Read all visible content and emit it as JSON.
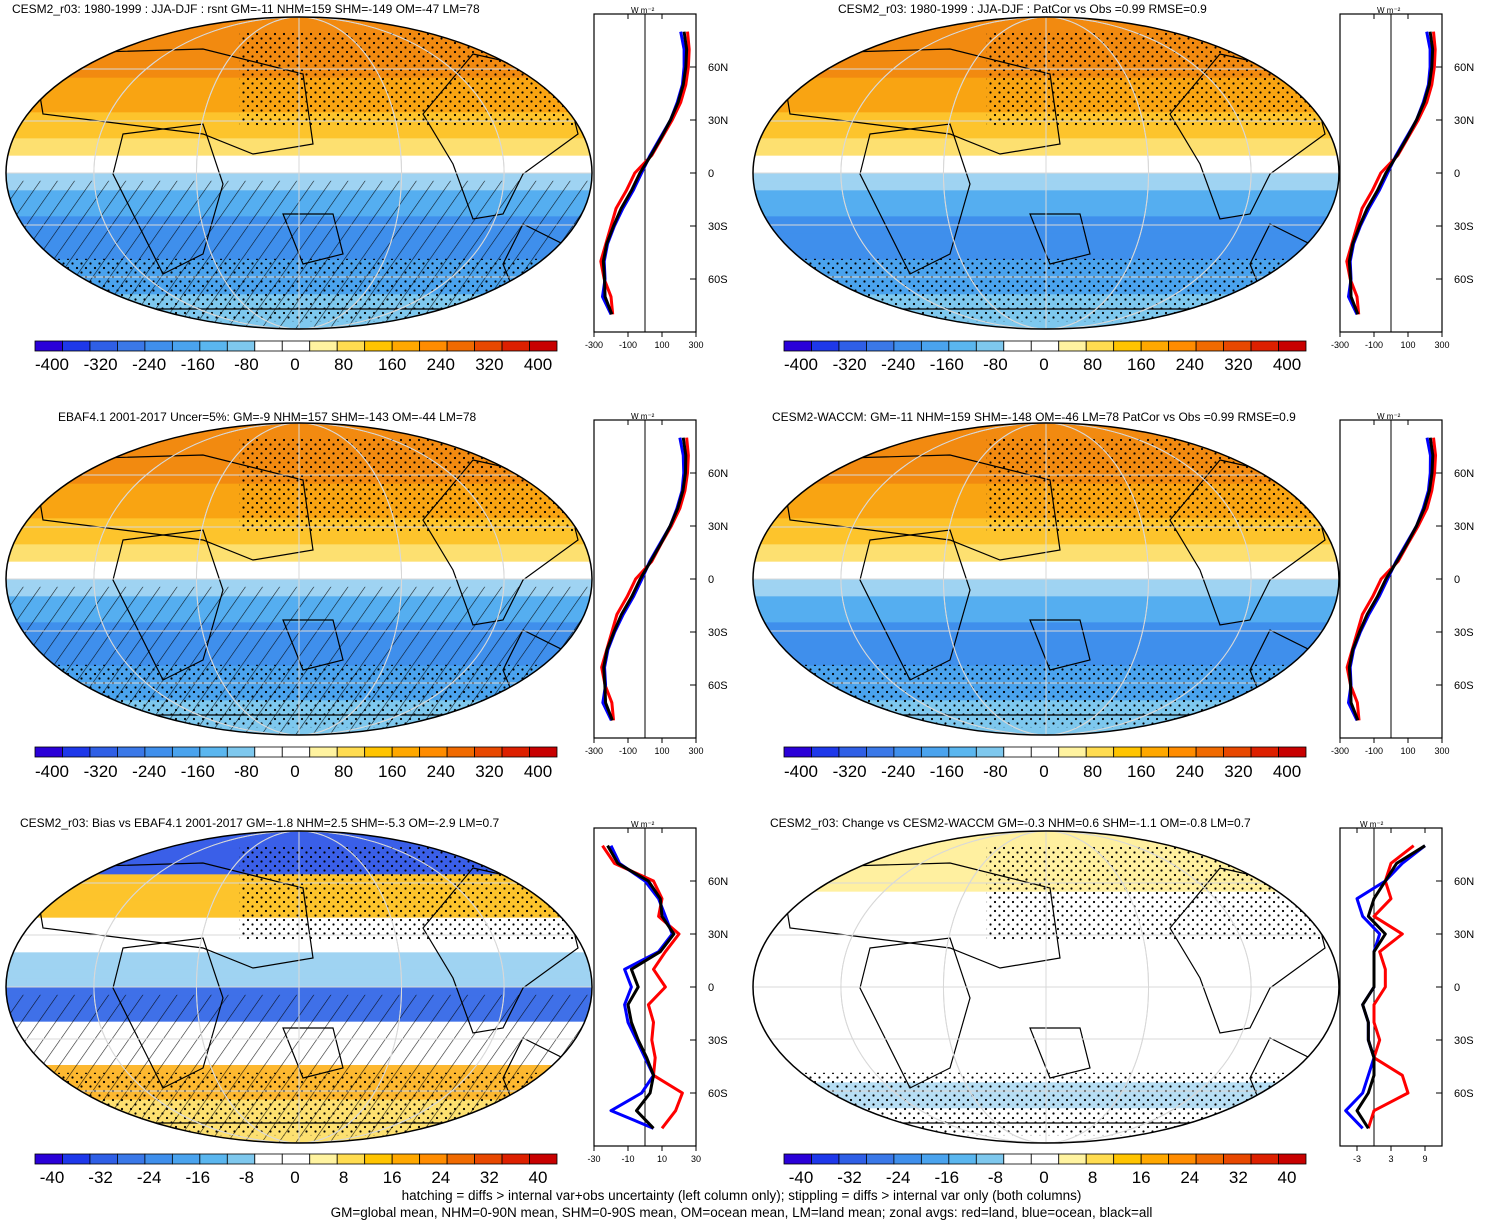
{
  "figure": {
    "footer_line1": "hatching = diffs > internal var+obs uncertainty (left column only); stippling = diffs > internal var only (both columns)",
    "footer_line2": "GM=global mean, NHM=0-90N mean, SHM=0-90S mean, OM=ocean mean, LM=land mean; zonal avgs: red=land, blue=ocean, black=all",
    "zonal_unit_label": "W m⁻²",
    "lat_ticks": [
      "60N",
      "30N",
      "0",
      "30S",
      "60S"
    ]
  },
  "colors": {
    "land_line": "#ff0000",
    "ocean_line": "#0000ff",
    "all_line": "#000000",
    "colorbar": [
      "#2a00d8",
      "#1e38ea",
      "#2f5fe6",
      "#3a78e8",
      "#3f8fec",
      "#4aa3ee",
      "#5ab6ef",
      "#7ec8ee",
      "#ffffff",
      "#ffffff",
      "#fff3a0",
      "#ffdc50",
      "#ffc400",
      "#ffa800",
      "#ff8c00",
      "#f06a00",
      "#e84800",
      "#dd2000",
      "#c80000"
    ]
  },
  "chart_data": [
    {
      "type": "heatmap",
      "title": "CESM2_r03: 1980-1999 : JJA-DJF : rsnt GM=-11 NHM=159 SHM=-149 OM=-47 LM=78",
      "colorbar_ticks": [
        "-400",
        "-320",
        "-240",
        "-160",
        "-80",
        "0",
        "80",
        "160",
        "240",
        "320",
        "400"
      ],
      "zonal_xticks": [
        "-300",
        "-100",
        "100",
        "300"
      ],
      "zonal_xlim": [
        -300,
        300
      ],
      "hatching": true,
      "stippling": true,
      "lat": [
        80,
        70,
        60,
        50,
        40,
        30,
        20,
        10,
        0,
        -10,
        -20,
        -30,
        -40,
        -50,
        -60,
        -70,
        -80
      ],
      "series": [
        {
          "name": "land",
          "values": [
            250,
            260,
            255,
            240,
            210,
            160,
            100,
            40,
            -60,
            -110,
            -170,
            -200,
            -230,
            -260,
            -240,
            -200,
            -190
          ]
        },
        {
          "name": "ocean",
          "values": [
            210,
            230,
            230,
            220,
            190,
            150,
            90,
            30,
            -20,
            -70,
            -130,
            -180,
            -220,
            -240,
            -235,
            -250,
            -200
          ]
        },
        {
          "name": "all",
          "values": [
            230,
            245,
            240,
            225,
            195,
            150,
            95,
            35,
            -30,
            -80,
            -140,
            -185,
            -225,
            -245,
            -238,
            -235,
            -195
          ]
        }
      ]
    },
    {
      "type": "heatmap",
      "title": "CESM2_r03: 1980-1999 : JJA-DJF : PatCor vs Obs =0.99 RMSE=0.9",
      "colorbar_ticks": [
        "-400",
        "-320",
        "-240",
        "-160",
        "-80",
        "0",
        "80",
        "160",
        "240",
        "320",
        "400"
      ],
      "zonal_xticks": [
        "-300",
        "-100",
        "100",
        "300"
      ],
      "zonal_xlim": [
        -300,
        300
      ],
      "hatching": false,
      "stippling": true,
      "lat": [
        80,
        70,
        60,
        50,
        40,
        30,
        20,
        10,
        0,
        -10,
        -20,
        -30,
        -40,
        -50,
        -60,
        -70,
        -80
      ],
      "series": [
        {
          "name": "land",
          "values": [
            250,
            260,
            255,
            240,
            210,
            160,
            100,
            40,
            -60,
            -110,
            -170,
            -200,
            -230,
            -260,
            -240,
            -200,
            -190
          ]
        },
        {
          "name": "ocean",
          "values": [
            210,
            230,
            230,
            220,
            190,
            150,
            90,
            30,
            -20,
            -70,
            -130,
            -180,
            -220,
            -240,
            -235,
            -250,
            -200
          ]
        },
        {
          "name": "all",
          "values": [
            230,
            245,
            240,
            225,
            195,
            150,
            95,
            35,
            -30,
            -80,
            -140,
            -185,
            -225,
            -245,
            -238,
            -235,
            -195
          ]
        }
      ]
    },
    {
      "type": "heatmap",
      "title": "EBAF4.1 2001-2017 Uncer=5%: GM=-9 NHM=157 SHM=-143 OM=-44 LM=78",
      "colorbar_ticks": [
        "-400",
        "-320",
        "-240",
        "-160",
        "-80",
        "0",
        "80",
        "160",
        "240",
        "320",
        "400"
      ],
      "zonal_xticks": [
        "-300",
        "-100",
        "100",
        "300"
      ],
      "zonal_xlim": [
        -300,
        300
      ],
      "hatching": true,
      "stippling": true,
      "lat": [
        80,
        70,
        60,
        50,
        40,
        30,
        20,
        10,
        0,
        -10,
        -20,
        -30,
        -40,
        -50,
        -60,
        -70,
        -80
      ],
      "series": [
        {
          "name": "land",
          "values": [
            245,
            255,
            250,
            235,
            205,
            155,
            95,
            40,
            -55,
            -105,
            -165,
            -195,
            -225,
            -255,
            -235,
            -195,
            -185
          ]
        },
        {
          "name": "ocean",
          "values": [
            205,
            225,
            228,
            218,
            188,
            148,
            88,
            28,
            -18,
            -68,
            -128,
            -178,
            -218,
            -238,
            -232,
            -248,
            -198
          ]
        },
        {
          "name": "all",
          "values": [
            225,
            240,
            238,
            223,
            193,
            148,
            93,
            33,
            -28,
            -78,
            -138,
            -183,
            -223,
            -243,
            -236,
            -232,
            -192
          ]
        }
      ]
    },
    {
      "type": "heatmap",
      "title": "CESM2-WACCM: GM=-11 NHM=159 SHM=-148 OM=-46 LM=78 PatCor vs Obs =0.99 RMSE=0.9",
      "colorbar_ticks": [
        "-400",
        "-320",
        "-240",
        "-160",
        "-80",
        "0",
        "80",
        "160",
        "240",
        "320",
        "400"
      ],
      "zonal_xticks": [
        "-300",
        "-100",
        "100",
        "300"
      ],
      "zonal_xlim": [
        -300,
        300
      ],
      "hatching": false,
      "stippling": true,
      "lat": [
        80,
        70,
        60,
        50,
        40,
        30,
        20,
        10,
        0,
        -10,
        -20,
        -30,
        -40,
        -50,
        -60,
        -70,
        -80
      ],
      "series": [
        {
          "name": "land",
          "values": [
            250,
            262,
            256,
            240,
            212,
            160,
            100,
            42,
            -58,
            -108,
            -168,
            -198,
            -228,
            -258,
            -238,
            -198,
            -188
          ]
        },
        {
          "name": "ocean",
          "values": [
            212,
            232,
            231,
            220,
            190,
            150,
            90,
            30,
            -20,
            -70,
            -130,
            -180,
            -220,
            -240,
            -235,
            -250,
            -200
          ]
        },
        {
          "name": "all",
          "values": [
            231,
            246,
            241,
            226,
            196,
            150,
            95,
            35,
            -30,
            -80,
            -140,
            -185,
            -225,
            -245,
            -238,
            -235,
            -195
          ]
        }
      ]
    },
    {
      "type": "heatmap",
      "title": "CESM2_r03: Bias vs EBAF4.1 2001-2017 GM=-1.8 NHM=2.5 SHM=-5.3 OM=-2.9 LM=0.7",
      "colorbar_ticks": [
        "-40",
        "-32",
        "-24",
        "-16",
        "-8",
        "0",
        "8",
        "16",
        "24",
        "32",
        "40"
      ],
      "zonal_xticks": [
        "-30",
        "-10",
        "10",
        "30"
      ],
      "zonal_xlim": [
        -30,
        30
      ],
      "hatching": true,
      "stippling": true,
      "lat": [
        80,
        70,
        60,
        50,
        40,
        30,
        20,
        10,
        0,
        -10,
        -20,
        -30,
        -40,
        -50,
        -60,
        -70,
        -80
      ],
      "series": [
        {
          "name": "land",
          "values": [
            -25,
            -18,
            5,
            10,
            8,
            20,
            12,
            5,
            12,
            2,
            5,
            4,
            6,
            5,
            22,
            18,
            10
          ]
        },
        {
          "name": "ocean",
          "values": [
            -20,
            -15,
            0,
            8,
            12,
            16,
            8,
            -12,
            -8,
            -12,
            -10,
            -5,
            0,
            5,
            -2,
            -20,
            5
          ]
        },
        {
          "name": "all",
          "values": [
            -22,
            -16,
            2,
            9,
            10,
            17,
            9,
            -8,
            -4,
            -10,
            -8,
            -4,
            1,
            5,
            3,
            -5,
            5
          ]
        }
      ]
    },
    {
      "type": "heatmap",
      "title": "CESM2_r03: Change vs CESM2-WACCM GM=-0.3 NHM=0.6 SHM=-1.1 OM=-0.8 LM=0.7",
      "colorbar_ticks": [
        "-40",
        "-32",
        "-24",
        "-16",
        "-8",
        "0",
        "8",
        "16",
        "24",
        "32",
        "40"
      ],
      "zonal_xticks": [
        "-3",
        "3",
        "9"
      ],
      "zonal_xlim": [
        -6,
        12
      ],
      "hatching": false,
      "stippling": true,
      "lat": [
        80,
        70,
        60,
        50,
        40,
        30,
        20,
        10,
        0,
        -10,
        -20,
        -30,
        -40,
        -50,
        -60,
        -70,
        -80
      ],
      "series": [
        {
          "name": "land",
          "values": [
            7,
            3,
            2,
            3,
            0,
            5,
            1,
            2,
            2,
            0,
            0,
            1,
            0,
            5,
            6,
            0,
            -1
          ]
        },
        {
          "name": "ocean",
          "values": [
            9,
            5,
            2,
            -3,
            -2,
            1,
            0,
            0,
            0,
            -2,
            -1,
            -1,
            0,
            -1,
            -2,
            -5,
            -2
          ]
        },
        {
          "name": "all",
          "values": [
            9,
            4,
            2,
            0,
            -1,
            2,
            0,
            0,
            0,
            -2,
            -1,
            -1,
            0,
            0,
            -1,
            -3,
            -1
          ]
        }
      ]
    }
  ]
}
